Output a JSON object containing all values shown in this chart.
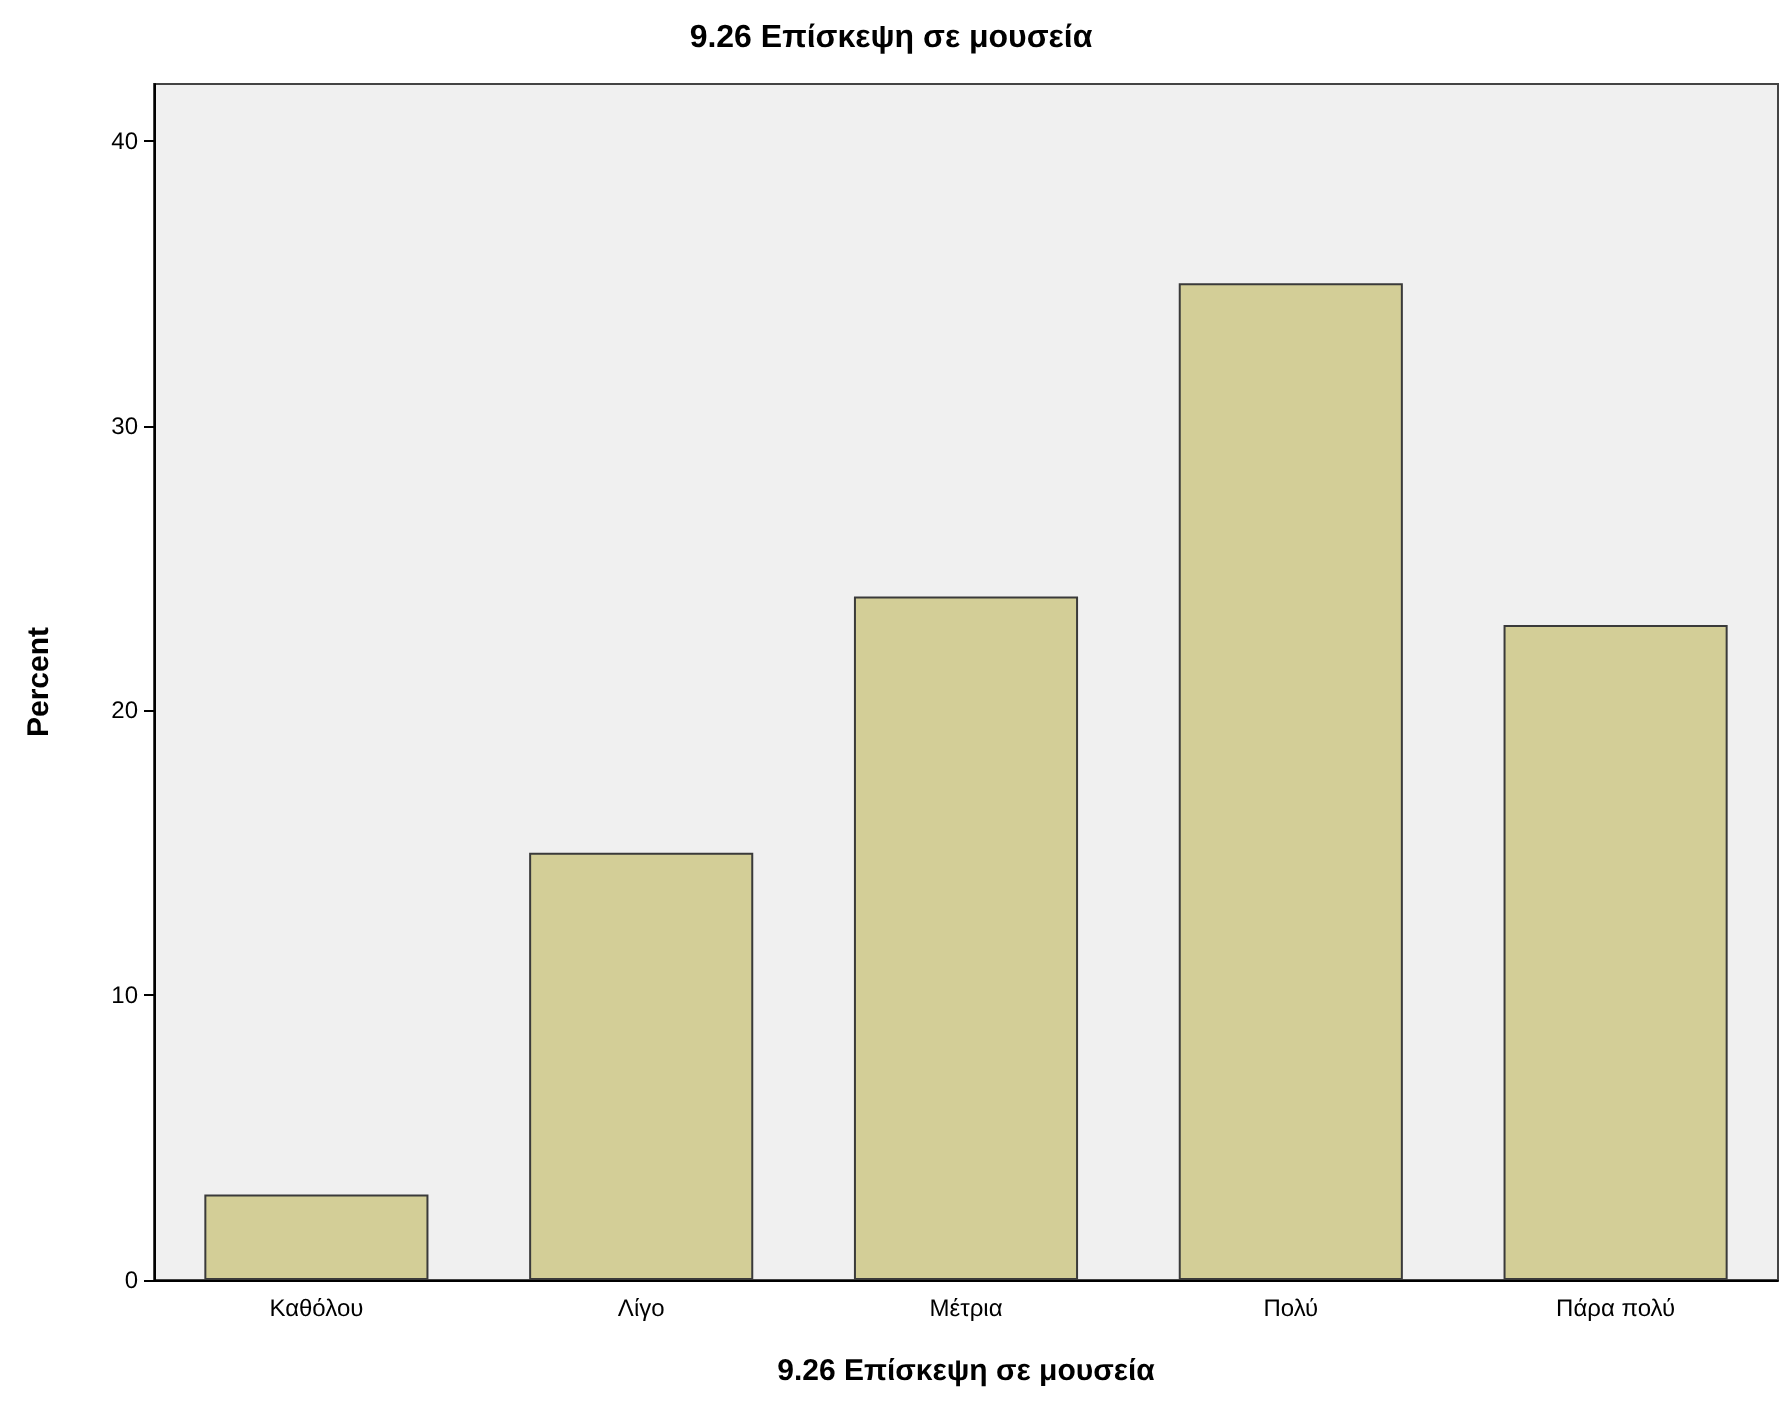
{
  "chart_data": {
    "type": "bar",
    "title": "9.26 Επίσκεψη σε μουσεία",
    "xlabel": "9.26 Επίσκεψη σε μουσεία",
    "ylabel": "Percent",
    "categories": [
      "Καθόλου",
      "Λίγο",
      "Μέτρια",
      "Πολύ",
      "Πάρα πολύ"
    ],
    "values": [
      3,
      15,
      24,
      35,
      23
    ],
    "color": "#d3ce97",
    "ylim": [
      0,
      42
    ],
    "yticks": [
      0,
      10,
      20,
      30,
      40
    ]
  }
}
